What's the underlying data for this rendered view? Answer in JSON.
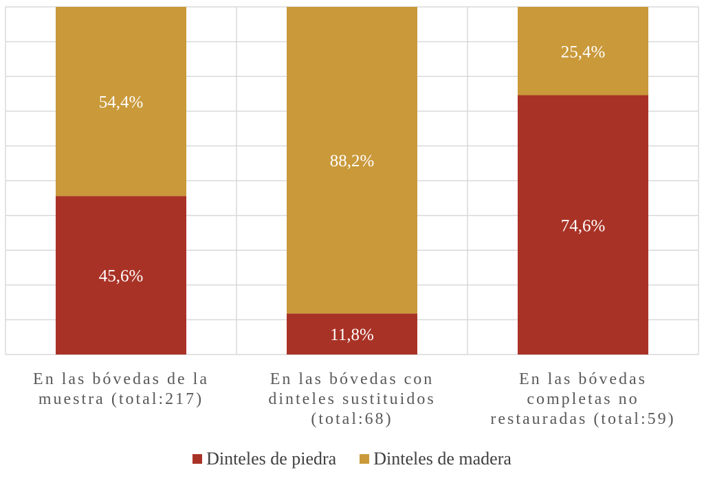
{
  "chart_data": {
    "type": "bar",
    "stacked": true,
    "percent": true,
    "categories": [
      [
        "En las bóvedas de la",
        "muestra (total:217)"
      ],
      [
        "En las bóvedas con",
        "dinteles  sustituidos",
        "(total:68)"
      ],
      [
        "En las bóvedas",
        "completas no",
        "restauradas (total:59)"
      ]
    ],
    "series": [
      {
        "name": "Dinteles de piedra",
        "color": "#a93226",
        "values": [
          45.6,
          11.8,
          74.6
        ],
        "labels": [
          "45,6%",
          "11,8%",
          "74,6%"
        ]
      },
      {
        "name": "Dinteles de madera",
        "color": "#c9993a",
        "values": [
          54.4,
          88.2,
          25.4
        ],
        "labels": [
          "54,4%",
          "88,2%",
          "25,4%"
        ]
      }
    ],
    "ylim": [
      0,
      100
    ],
    "grid": true,
    "legend_position": "bottom"
  }
}
